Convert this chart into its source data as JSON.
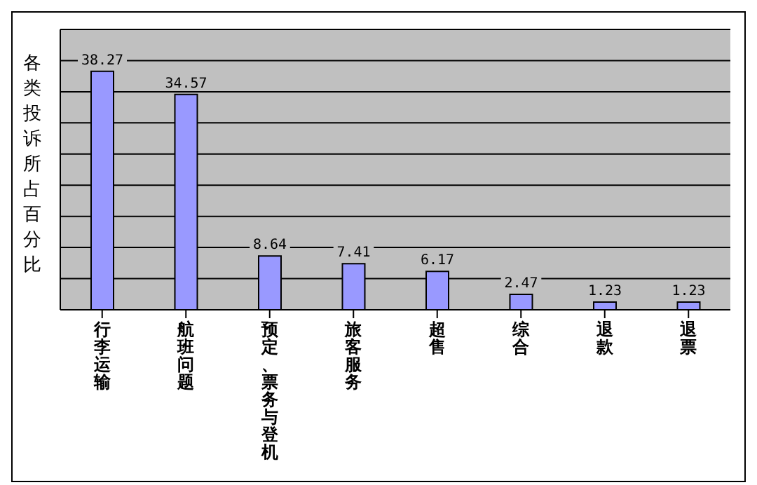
{
  "chart_data": {
    "type": "bar",
    "ylabel": "各类投诉所占百分比",
    "categories": [
      "行李运输",
      "航班问题",
      "预定、票务与登机",
      "旅客服务",
      "超售",
      "综合",
      "退款",
      "退票"
    ],
    "values": [
      38.27,
      34.57,
      8.64,
      7.41,
      6.17,
      2.47,
      1.23,
      1.23
    ],
    "color": "#9999ff",
    "ylim": [
      0,
      45
    ],
    "yticks": [
      {
        "value": 0,
        "label": null
      },
      {
        "value": 5,
        "label": null
      },
      {
        "value": 10,
        "label": null
      },
      {
        "value": 15,
        "label": null
      },
      {
        "value": 20,
        "label": null
      },
      {
        "value": 25,
        "label": null
      },
      {
        "value": 30,
        "label": null
      },
      {
        "value": 35,
        "label": null
      },
      {
        "value": 40,
        "label": null
      },
      {
        "value": 45,
        "label": null
      }
    ],
    "tick_labels": "x",
    "grid": "y",
    "data_labels": true
  }
}
